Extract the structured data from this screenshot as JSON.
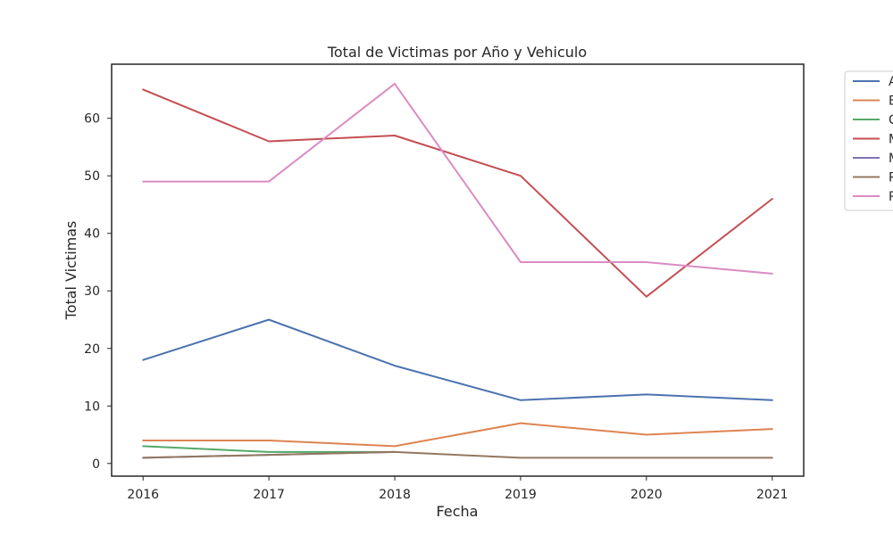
{
  "chart_data": {
    "type": "line",
    "title": "Total de Victimas por Año y Vehiculo",
    "xlabel": "Fecha",
    "ylabel": "Total Victimas",
    "x": [
      2016,
      2017,
      2018,
      2019,
      2020,
      2021
    ],
    "x_tick_labels": [
      "2016",
      "2017",
      "2018",
      "2019",
      "2020",
      "2021"
    ],
    "y_ticks": [
      0,
      10,
      20,
      30,
      40,
      50,
      60
    ],
    "y_tick_labels": [
      "0",
      "10",
      "20",
      "30",
      "40",
      "50",
      "60"
    ],
    "xlim": [
      2015.75,
      2021.25
    ],
    "ylim": [
      -2.2,
      69.4
    ],
    "grid": false,
    "legend_placement": "outside-top-right",
    "series": [
      {
        "name": "A",
        "color": "#4c72b0",
        "values": [
          18,
          25,
          17,
          11,
          12,
          11
        ]
      },
      {
        "name": "B",
        "color": "#dd8452",
        "values": [
          4,
          4,
          3,
          7,
          5,
          6
        ]
      },
      {
        "name": "C",
        "color": "#55a868",
        "values": [
          3,
          2,
          2,
          null,
          null,
          null
        ]
      },
      {
        "name": "M",
        "color": "#c44e52",
        "values": [
          65,
          56,
          57,
          50,
          29,
          46
        ]
      },
      {
        "name": "M",
        "color": "#8172b3",
        "values": [
          1,
          1.5,
          2,
          null,
          null,
          null
        ]
      },
      {
        "name": "P",
        "color": "#937860",
        "values": [
          1,
          1.5,
          2,
          1,
          1,
          1
        ]
      },
      {
        "name": "P",
        "color": "#da8bc3",
        "values": [
          49,
          49,
          66,
          35,
          35,
          33
        ]
      }
    ]
  }
}
